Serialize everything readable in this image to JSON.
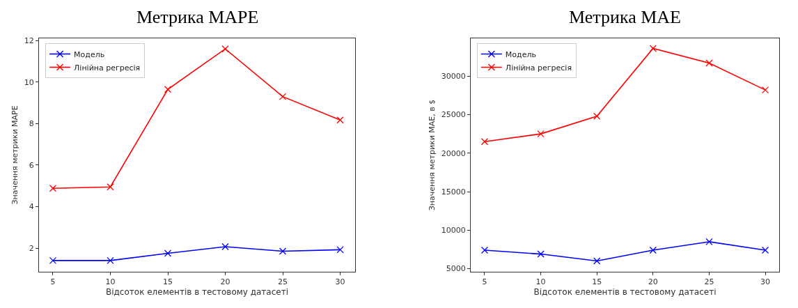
{
  "chart_data": [
    {
      "type": "line",
      "title": "Метрика MAPE",
      "xlabel": "Відсоток елементів в тестовому датасеті",
      "ylabel": "Значення метрики MAPE",
      "x": [
        5,
        10,
        15,
        20,
        25,
        30
      ],
      "series": [
        {
          "name": "Модель",
          "color": "#0000ff",
          "values": [
            1.4,
            1.4,
            1.75,
            2.07,
            1.85,
            1.92
          ]
        },
        {
          "name": "Лінійна регресія",
          "color": "#ff0000",
          "values": [
            4.88,
            4.95,
            9.65,
            11.6,
            9.3,
            8.17
          ]
        }
      ],
      "xlim": [
        3.79,
        31.3
      ],
      "xticks": [
        5,
        10,
        15,
        20,
        25,
        30
      ],
      "ylim": [
        0.87,
        12.1
      ],
      "yticks": [
        2,
        4,
        6,
        8,
        10,
        12
      ],
      "marker": "cross",
      "line_style": "solid",
      "legend": "top left"
    },
    {
      "type": "line",
      "title": "Метрика MAE",
      "xlabel": "Відсоток елементів в тестовому датасеті",
      "ylabel": "Значення метрики MAE, в $",
      "x": [
        5,
        10,
        15,
        20,
        25,
        30
      ],
      "series": [
        {
          "name": "Модель",
          "color": "#0000ff",
          "values": [
            7400,
            6900,
            6000,
            7400,
            8500,
            7400
          ]
        },
        {
          "name": "Лінійна регресія",
          "color": "#ff0000",
          "values": [
            21500,
            22500,
            24800,
            33600,
            31700,
            28200
          ]
        }
      ],
      "xlim": [
        3.76,
        31.24
      ],
      "xticks": [
        5,
        10,
        15,
        20,
        25,
        30
      ],
      "ylim": [
        4630,
        34880
      ],
      "yticks": [
        5000,
        10000,
        15000,
        20000,
        25000,
        30000
      ],
      "marker": "cross",
      "line_style": "solid",
      "legend": "top left"
    }
  ]
}
